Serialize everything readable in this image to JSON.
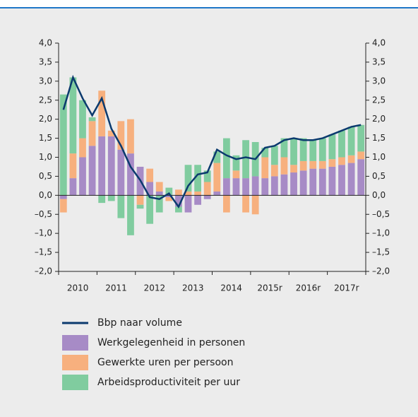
{
  "chart_data": {
    "type": "bar",
    "categories": [
      null,
      "2010",
      null,
      null,
      null,
      "2011",
      null,
      null,
      null,
      "2012",
      null,
      null,
      null,
      "2013",
      null,
      null,
      null,
      "2014",
      null,
      null,
      null,
      "2015r",
      null,
      null,
      null,
      "2016r",
      null,
      null,
      null,
      "2017r",
      null,
      null
    ],
    "series": [
      {
        "name": "Werkgelegenheid in personen",
        "color": "#a78bc6",
        "values": [
          -0.1,
          0.45,
          1.0,
          1.3,
          1.55,
          1.55,
          1.2,
          1.1,
          0.75,
          0.35,
          0.1,
          -0.05,
          -0.3,
          -0.45,
          -0.25,
          -0.1,
          0.1,
          0.45,
          0.45,
          0.45,
          0.5,
          0.45,
          0.5,
          0.55,
          0.6,
          0.65,
          0.7,
          0.7,
          0.75,
          0.8,
          0.85,
          0.95
        ]
      },
      {
        "name": "Gewerkte uren per persoon",
        "color": "#f7b07e",
        "values": [
          -0.35,
          0.65,
          0.5,
          0.65,
          1.2,
          0.15,
          0.75,
          0.9,
          -0.25,
          0.35,
          0.25,
          -0.1,
          0.15,
          0.1,
          0.1,
          0.35,
          0.75,
          -0.45,
          0.2,
          -0.45,
          -0.5,
          0.55,
          0.3,
          0.45,
          0.2,
          0.25,
          0.2,
          0.2,
          0.2,
          0.2,
          0.2,
          0.2
        ]
      },
      {
        "name": "Arbeidsproductiviteit per uur",
        "color": "#80cc9f",
        "values": [
          2.65,
          2.0,
          1.0,
          0.1,
          -0.2,
          -0.15,
          -0.6,
          -1.05,
          -0.1,
          -0.75,
          -0.45,
          0.2,
          -0.15,
          0.7,
          0.7,
          0.3,
          0.3,
          1.05,
          0.4,
          1.0,
          0.9,
          0.25,
          0.5,
          0.5,
          0.7,
          0.6,
          0.55,
          0.6,
          0.65,
          0.7,
          0.75,
          0.7
        ]
      },
      {
        "name": "Bbp naar volume",
        "type": "line",
        "color": "#0b3a6e",
        "values": [
          2.25,
          3.1,
          2.55,
          2.1,
          2.55,
          1.75,
          1.3,
          0.75,
          0.4,
          -0.05,
          -0.1,
          0.05,
          -0.3,
          0.25,
          0.55,
          0.6,
          1.2,
          1.05,
          0.95,
          1.0,
          0.95,
          1.25,
          1.3,
          1.45,
          1.5,
          1.45,
          1.45,
          1.5,
          1.6,
          1.7,
          1.8,
          1.85
        ]
      }
    ],
    "ylim": [
      -2,
      4
    ],
    "yticks": [
      {
        "value": -2,
        "label": "–2,0"
      },
      {
        "value": -1.5,
        "label": "–1,5"
      },
      {
        "value": -1,
        "label": "–1,0"
      },
      {
        "value": -0.5,
        "label": "–0,5"
      },
      {
        "value": 0,
        "label": "0,0"
      },
      {
        "value": 0.5,
        "label": "0,5"
      },
      {
        "value": 1,
        "label": "1,0"
      },
      {
        "value": 1.5,
        "label": "1,5"
      },
      {
        "value": 2,
        "label": "2,0"
      },
      {
        "value": 2.5,
        "label": "2,5"
      },
      {
        "value": 3,
        "label": "3,0"
      },
      {
        "value": 3.5,
        "label": "3,5"
      },
      {
        "value": 4,
        "label": "4,0"
      }
    ],
    "y2lim": [
      -2,
      4
    ],
    "y2ticks": [
      {
        "value": -2,
        "label": "–2,0"
      },
      {
        "value": -1.5,
        "label": "–1,5"
      },
      {
        "value": -1,
        "label": "–1,0"
      },
      {
        "value": -0.5,
        "label": "–0,5"
      },
      {
        "value": 0,
        "label": "0,0"
      },
      {
        "value": 0.5,
        "label": "0,5"
      },
      {
        "value": 1,
        "label": "1,0"
      },
      {
        "value": 1.5,
        "label": "1,5"
      },
      {
        "value": 2,
        "label": "2,0"
      },
      {
        "value": 2.5,
        "label": "2,5"
      },
      {
        "value": 3,
        "label": "3,0"
      },
      {
        "value": 3.5,
        "label": "3,5"
      },
      {
        "value": 4,
        "label": "4,0"
      }
    ]
  }
}
